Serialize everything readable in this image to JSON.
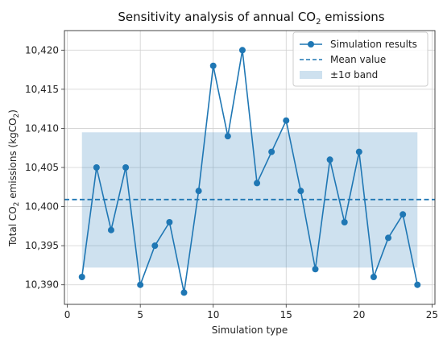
{
  "chart_data": {
    "type": "line",
    "title_main": "Sensitivity analysis of annual CO",
    "title_sub": "2",
    "title_tail": " emissions",
    "xlabel": "Simulation type",
    "ylabel_main": "Total CO",
    "ylabel_sub1": "2",
    "ylabel_mid": " emissions (kgCO",
    "ylabel_sub2": "2",
    "ylabel_tail": ")",
    "xlim": [
      -0.2,
      25.2
    ],
    "ylim": [
      10387.5,
      10422.5
    ],
    "xticks": [
      0,
      5,
      10,
      15,
      20,
      25
    ],
    "xtick_labels": [
      "0",
      "5",
      "10",
      "15",
      "20",
      "25"
    ],
    "yticks": [
      10390,
      10395,
      10400,
      10405,
      10410,
      10415,
      10420
    ],
    "ytick_labels": [
      "10,390",
      "10,395",
      "10,400",
      "10,405",
      "10,410",
      "10,415",
      "10,420"
    ],
    "grid": true,
    "legend_position": "top-right",
    "series": [
      {
        "name": "Simulation results",
        "color": "#1f77b4",
        "x": [
          1,
          2,
          3,
          4,
          5,
          6,
          7,
          8,
          9,
          10,
          11,
          12,
          13,
          14,
          15,
          16,
          17,
          18,
          19,
          20,
          21,
          22,
          23,
          24
        ],
        "values": [
          10391,
          10405,
          10397,
          10405,
          10390,
          10395,
          10398,
          10389,
          10402,
          10418,
          10409,
          10420,
          10403,
          10407,
          10411,
          10402,
          10392,
          10406,
          10398,
          10407,
          10391,
          10396,
          10399,
          10390
        ]
      }
    ],
    "mean": {
      "name": "Mean value",
      "value": 10400.9,
      "color": "#1f77b4"
    },
    "band": {
      "name": "±1σ band",
      "low": 10392.2,
      "high": 10409.5,
      "x_range": [
        1,
        24
      ],
      "color": "#1f77b4"
    }
  }
}
